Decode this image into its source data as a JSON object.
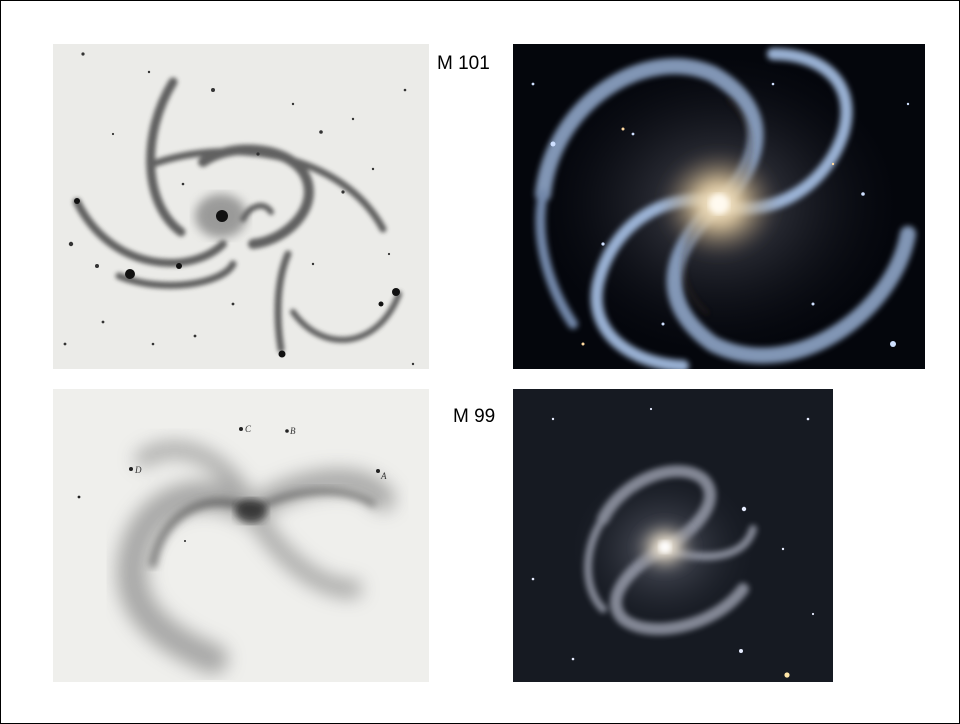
{
  "galaxies": [
    {
      "label": "M 101"
    },
    {
      "label": "M 99"
    }
  ],
  "sketch_letters": [
    "D",
    "C",
    "B",
    "A"
  ],
  "colors": {
    "paper": "#efefec",
    "ink": "#2a2a2a",
    "space": "#05070d",
    "arm_blue": "#a9c3e8",
    "core_gold": "#f3dfb6"
  }
}
